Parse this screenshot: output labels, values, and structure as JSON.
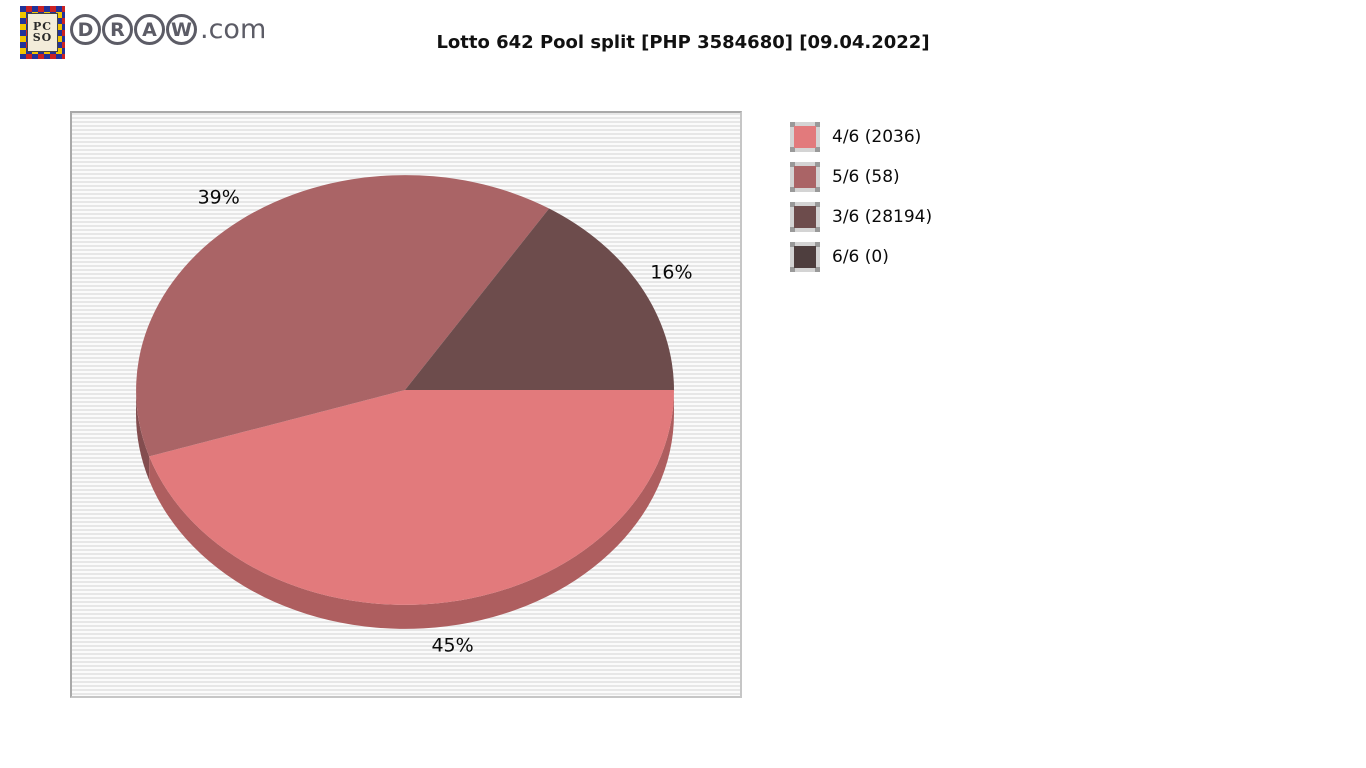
{
  "page": {
    "title": "Lotto 642 Pool split [PHP 3584680] [09.04.2022]"
  },
  "logo": {
    "badge_line1": "PC",
    "badge_line2": "SO",
    "balls": [
      "D",
      "R",
      "A",
      "W"
    ],
    "suffix": ".com"
  },
  "legend": {
    "position": "right",
    "items": [
      {
        "display": "4/6 (2036)",
        "label": "4/6",
        "count": 2036,
        "color": "#e27a7c"
      },
      {
        "display": "5/6 (58)",
        "label": "5/6",
        "count": 58,
        "color": "#aa6466"
      },
      {
        "display": "3/6 (28194)",
        "label": "3/6",
        "count": 28194,
        "color": "#6d4c4c"
      },
      {
        "display": "6/6 (0)",
        "label": "6/6",
        "count": 0,
        "color": "#4e3e3e"
      }
    ]
  },
  "chart_data": {
    "type": "pie",
    "title": "Lotto 642 Pool split [PHP 3584680] [09.04.2022]",
    "prize_pool_php": 3584680,
    "draw_date": "09.04.2022",
    "labels": [
      "4/6",
      "5/6",
      "3/6",
      "6/6"
    ],
    "counts": [
      2036,
      58,
      28194,
      0
    ],
    "percents": [
      45,
      39,
      16,
      0
    ],
    "colors": [
      "#e27a7c",
      "#aa6466",
      "#6d4c4c",
      "#4e3e3e"
    ],
    "slice_label_format": "percent",
    "start_angle_deg": 0,
    "direction": "clockwise",
    "style": "3d",
    "legend_position": "right",
    "background": "striped-gray"
  }
}
